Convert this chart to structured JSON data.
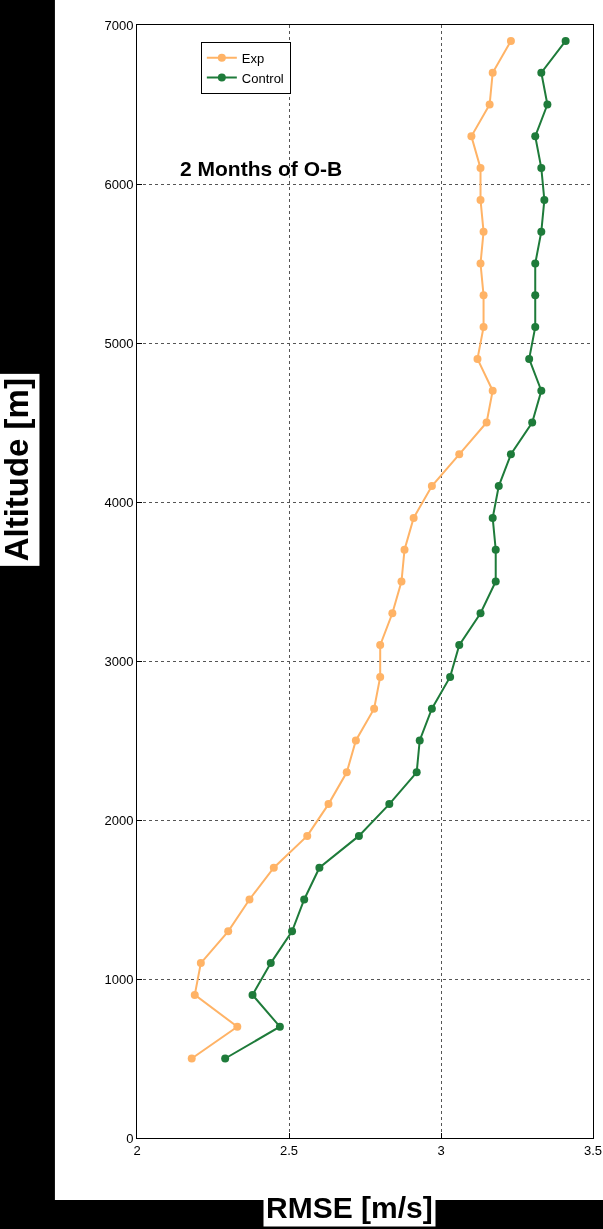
{
  "chart_data": {
    "type": "line",
    "title": "2 Months of O-B",
    "xlabel": "RMSE [m/s]",
    "ylabel": "Altitude [m]",
    "series": [
      {
        "name": "Exp",
        "color": "#ffb366",
        "x": [
          2.18,
          2.33,
          2.19,
          2.21,
          2.3,
          2.37,
          2.45,
          2.56,
          2.63,
          2.69,
          2.72,
          2.78,
          2.8,
          2.8,
          2.84,
          2.87,
          2.88,
          2.91,
          2.97,
          3.06,
          3.15,
          3.17,
          3.12,
          3.14,
          3.14,
          3.13,
          3.14,
          3.13,
          3.13,
          3.1,
          3.16,
          3.17,
          3.23
        ],
        "values": [
          500,
          700,
          900,
          1100,
          1300,
          1500,
          1700,
          1900,
          2100,
          2300,
          2500,
          2700,
          2900,
          3100,
          3300,
          3500,
          3700,
          3900,
          4100,
          4300,
          4500,
          4700,
          4900,
          5100,
          5300,
          5500,
          5700,
          5900,
          6100,
          6300,
          6500,
          6700,
          6900
        ]
      },
      {
        "name": "Control",
        "color": "#1e7b3a",
        "x": [
          2.29,
          2.47,
          2.38,
          2.44,
          2.51,
          2.55,
          2.6,
          2.73,
          2.83,
          2.92,
          2.93,
          2.97,
          3.03,
          3.06,
          3.13,
          3.18,
          3.18,
          3.17,
          3.19,
          3.23,
          3.3,
          3.33,
          3.29,
          3.31,
          3.31,
          3.31,
          3.33,
          3.34,
          3.33,
          3.31,
          3.35,
          3.33,
          3.41
        ],
        "values": [
          500,
          700,
          900,
          1100,
          1300,
          1500,
          1700,
          1900,
          2100,
          2300,
          2500,
          2700,
          2900,
          3100,
          3300,
          3500,
          3700,
          3900,
          4100,
          4300,
          4500,
          4700,
          4900,
          5100,
          5300,
          5500,
          5700,
          5900,
          6100,
          6300,
          6500,
          6700,
          6900
        ]
      }
    ],
    "xlim": [
      2,
      3.5
    ],
    "xticks": [
      2,
      2.5,
      3,
      3.5
    ],
    "ylim": [
      0,
      7000
    ],
    "yticks": [
      0,
      1000,
      2000,
      3000,
      4000,
      5000,
      6000,
      7000
    ],
    "grid": true,
    "legend": "top left",
    "marker": "circle",
    "line_style": "solid"
  }
}
